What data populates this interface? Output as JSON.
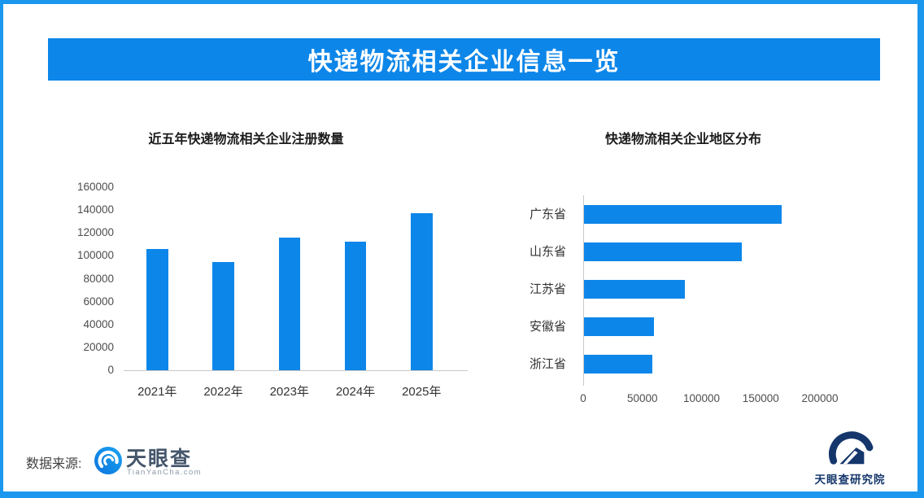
{
  "page": {
    "frame_color": "#1b97ed",
    "background": "#ffffff"
  },
  "header": {
    "title": "快递物流相关企业信息一览",
    "background": "#0d86e9",
    "text_color": "#ffffff"
  },
  "chart_data": [
    {
      "type": "bar",
      "title": "近五年快递物流相关企业注册数量",
      "categories": [
        "2021年",
        "2022年",
        "2023年",
        "2024年",
        "2025年"
      ],
      "values": [
        106000,
        94500,
        116000,
        112500,
        137000
      ],
      "xlabel": "",
      "ylabel": "",
      "ylim": [
        0,
        160000
      ],
      "ytick_step": 20000,
      "yticks": [
        0,
        20000,
        40000,
        60000,
        80000,
        100000,
        120000,
        140000,
        160000
      ],
      "bar_color": "#0d86e9",
      "grid": false,
      "legend": false
    },
    {
      "type": "bar",
      "orientation": "horizontal",
      "title": "快递物流相关企业地区分布",
      "categories": [
        "广东省",
        "山东省",
        "江苏省",
        "安徽省",
        "浙江省"
      ],
      "values": [
        167000,
        133500,
        85500,
        59000,
        57500
      ],
      "xlabel": "",
      "ylabel": "",
      "xlim": [
        0,
        200000
      ],
      "xticks": [
        0,
        50000,
        100000,
        150000,
        200000
      ],
      "bar_color": "#0d86e9",
      "grid": false,
      "legend": false
    }
  ],
  "footer": {
    "source_label": "数据来源:",
    "tianyancha": {
      "name": "天眼查",
      "domain": "TianYanCha.com",
      "logo_color": "#0d86e9"
    },
    "institute": {
      "name": "天眼查研究院",
      "logo_color": "#14366b"
    }
  }
}
